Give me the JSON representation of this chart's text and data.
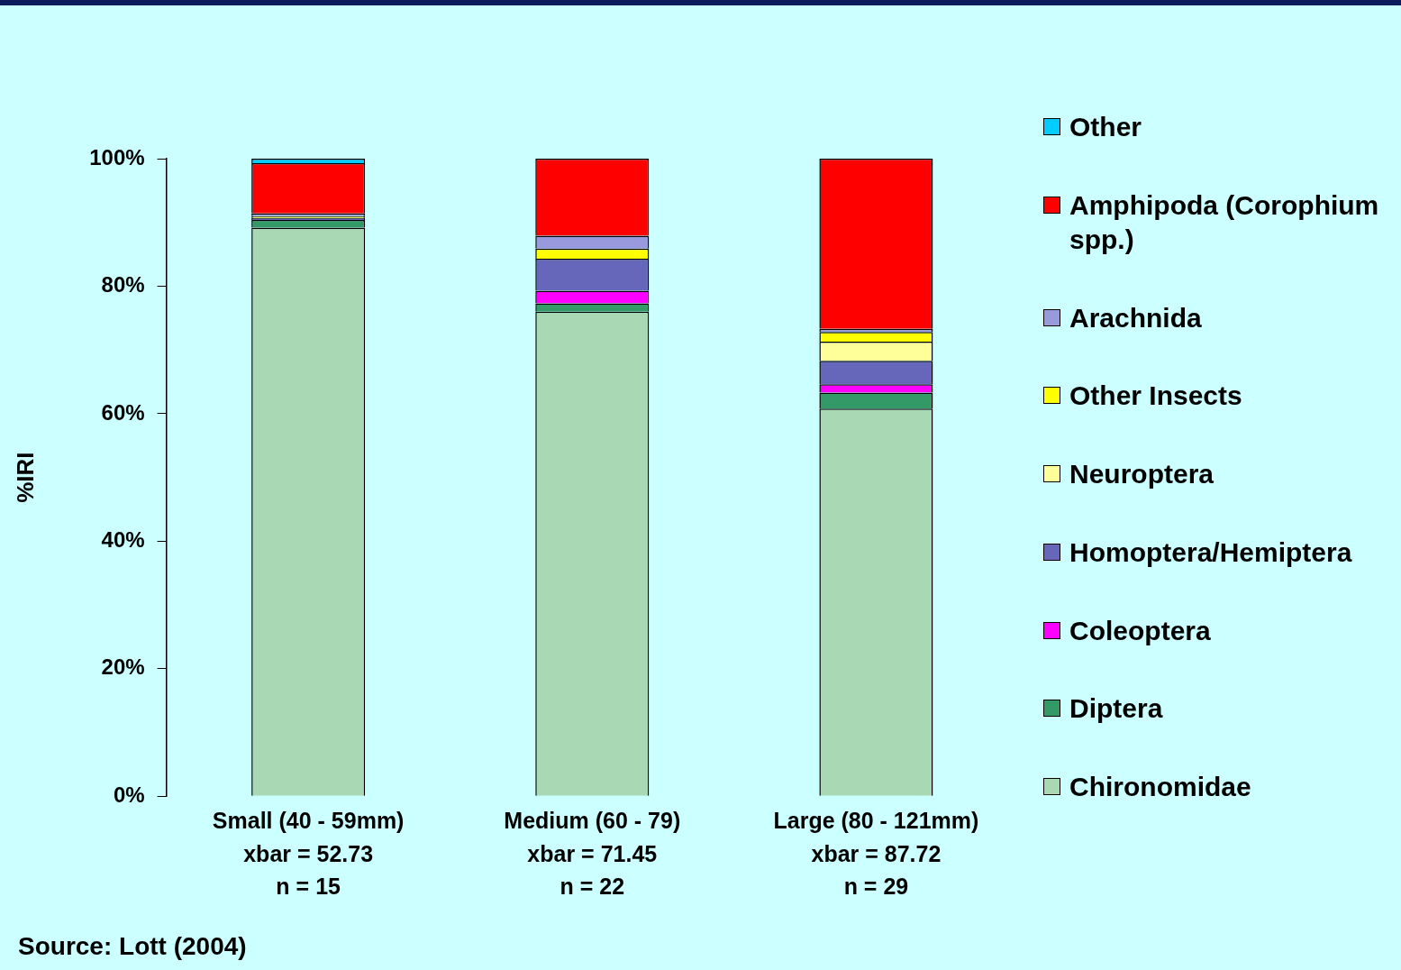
{
  "chart_data": {
    "type": "bar",
    "stacked": true,
    "ylabel": "%IRI",
    "legend": "right",
    "categories": [
      "Small (40 - 59mm)\nxbar = 52.73\nn = 15",
      "Medium (60 - 79)\nxbar = 71.45\nn = 22",
      "Large (80 - 121mm)\nxbar = 87.72\nn = 29"
    ],
    "ylim": [
      0,
      100
    ],
    "yticks": [
      {
        "value": 0,
        "label": "0%"
      },
      {
        "value": 20,
        "label": "20%"
      },
      {
        "value": 40,
        "label": "40%"
      },
      {
        "value": 60,
        "label": "60%"
      },
      {
        "value": 80,
        "label": "80%"
      },
      {
        "value": 100,
        "label": "100%"
      }
    ],
    "series": [
      {
        "name": "Chironomidae",
        "color": "#a8d8b4",
        "values": [
          89.2,
          76.0,
          60.8
        ]
      },
      {
        "name": "Diptera",
        "color": "#339966",
        "values": [
          1.2,
          1.3,
          2.5
        ]
      },
      {
        "name": "Coleoptera",
        "color": "#ff00ff",
        "values": [
          0,
          2.0,
          1.3
        ]
      },
      {
        "name": "Homoptera/Hemiptera",
        "color": "#6666bb",
        "values": [
          0.3,
          5.0,
          3.7
        ]
      },
      {
        "name": "Neuroptera",
        "color": "#ffff99",
        "values": [
          0,
          0,
          3.0
        ]
      },
      {
        "name": "Other Insects",
        "color": "#ffff00",
        "values": [
          0.3,
          1.6,
          1.5
        ]
      },
      {
        "name": "Arachnida",
        "color": "#9999dd",
        "values": [
          0.4,
          2.0,
          0.5
        ]
      },
      {
        "name": "Amphipoda (Corophium spp.)",
        "color": "#ff0000",
        "values": [
          7.9,
          12.1,
          26.7
        ]
      },
      {
        "name": "Other",
        "color": "#00ccff",
        "values": [
          0.7,
          0,
          0
        ]
      }
    ],
    "annotations": [
      "Source: Lott (2004)"
    ]
  }
}
